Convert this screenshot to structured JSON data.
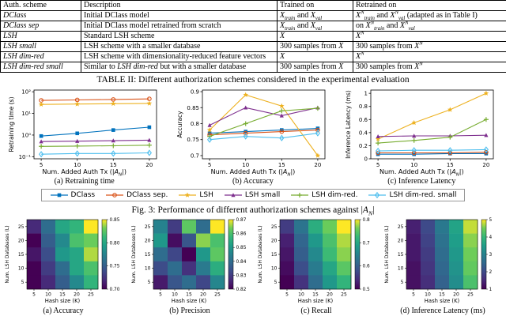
{
  "table": {
    "caption": "TABLE II: Different authorization schemes considered in the experimental evaluation",
    "headers": [
      "Auth. scheme",
      "Description",
      "Trained on",
      "Retrained on"
    ],
    "rows": [
      {
        "cells": [
          "*{DClass}",
          "Initial DClass model",
          "*{X}_{*{train}} and *{X}_{*{val}}",
          "*{X}^{*{N}}_{*{train}} and *{X}^{*{N}}_{*{val}} (adapted as in Table I)"
        ]
      },
      {
        "cells": [
          "*{DClass sep}",
          "Initial DClass model retrained from scratch",
          "*{X}_{*{train}} and *{X}_{*{val}}",
          "on *{X}^{*{N}}_{*{train}} and *{X}^{*{N}}_{*{val}}"
        ]
      },
      {
        "cells": [
          "*{LSH}",
          "Standard LSH scheme",
          "*{X}",
          "*{X}^{*{N}}"
        ]
      },
      {
        "cells": [
          "*{LSH small}",
          "LSH scheme with a smaller database",
          "300 samples from *{X}",
          "300 samples from *{X}^{*{N}}"
        ]
      },
      {
        "cells": [
          "*{LSH dim-red}",
          "LSH scheme with dimensionality-reduced feature vectors",
          "*{X}",
          "*{X}^{*{N}}"
        ]
      },
      {
        "cells": [
          "*{LSH dim-red small}",
          "Similar to *{LSH dim-red} but with a smaller database",
          "300 samples from *{X}",
          "300 samples from *{X}^{*{N}}"
        ]
      }
    ]
  },
  "fig3": {
    "caption": "Fig. 3: Performance of different authorization schemes against |*{A}_{*{N}}|",
    "xlabel": "Num. Added Auth Tx (|*{A}_{*{N}}|)",
    "subcaptions": [
      "(a) Retraining time",
      "(b) Accuracy",
      "(c) Inference Latency"
    ]
  },
  "heatmaps": {
    "subcaptions": [
      "(a) Accuracy",
      "(b) Precision",
      "(c) Recall",
      "(d) Inference Latency (ms)"
    ]
  },
  "legend": {
    "items": [
      {
        "label": "DClass",
        "color": "#0072BD",
        "marker": "sq"
      },
      {
        "label": "DClass sep.",
        "color": "#D95319",
        "marker": "ci"
      },
      {
        "label": "LSH",
        "color": "#EDB120",
        "marker": "st"
      },
      {
        "label": "LSH small",
        "color": "#7E2F8E",
        "marker": "tr"
      },
      {
        "label": "LSH dim-red.",
        "color": "#77AC30",
        "marker": "pl"
      },
      {
        "label": "LSH dim-red. small",
        "color": "#4DBEEE",
        "marker": "di"
      }
    ]
  },
  "chart_data": [
    {
      "type": "line",
      "title": "(a) Retraining time",
      "xlabel": "Num. Added Auth Tx (|A_N|)",
      "ylabel": "Retraining time (s)",
      "x": [
        5,
        10,
        15,
        20
      ],
      "xlim": [
        4,
        21
      ],
      "ylog": true,
      "ylim": [
        0.08,
        120
      ],
      "yticks": [
        0.1,
        1,
        10,
        100
      ],
      "yticklabels": [
        "10⁻¹",
        "10⁰",
        "10¹",
        "10²"
      ],
      "series": [
        {
          "name": "DClass",
          "color": "#0072BD",
          "marker": "sq",
          "values": [
            0.9,
            1.2,
            1.7,
            2.3
          ]
        },
        {
          "name": "DClass sep.",
          "color": "#D95319",
          "marker": "ci",
          "values": [
            40,
            42,
            44,
            47
          ]
        },
        {
          "name": "LSH",
          "color": "#EDB120",
          "marker": "st",
          "values": [
            26,
            27,
            28,
            29
          ]
        },
        {
          "name": "LSH small",
          "color": "#7E2F8E",
          "marker": "tr",
          "values": [
            0.5,
            0.52,
            0.55,
            0.58
          ]
        },
        {
          "name": "LSH dim-red.",
          "color": "#77AC30",
          "marker": "pl",
          "values": [
            0.3,
            0.31,
            0.32,
            0.34
          ]
        },
        {
          "name": "LSH dim-red. small",
          "color": "#4DBEEE",
          "marker": "di",
          "values": [
            0.13,
            0.14,
            0.14,
            0.15
          ]
        }
      ]
    },
    {
      "type": "line",
      "title": "(b) Accuracy",
      "xlabel": "Num. Added Auth Tx (|A_N|)",
      "ylabel": "Accuracy",
      "x": [
        5,
        10,
        15,
        20
      ],
      "xlim": [
        4,
        21
      ],
      "ylog": false,
      "ylim": [
        0.69,
        0.905
      ],
      "yticks": [
        0.7,
        0.75,
        0.8,
        0.85,
        0.9
      ],
      "yticklabels": [
        "0.7",
        "0.75",
        "0.8",
        "0.85",
        "0.9"
      ],
      "series": [
        {
          "name": "DClass",
          "color": "#0072BD",
          "marker": "sq",
          "values": [
            0.77,
            0.775,
            0.78,
            0.785
          ]
        },
        {
          "name": "DClass sep.",
          "color": "#D95319",
          "marker": "ci",
          "values": [
            0.765,
            0.77,
            0.775,
            0.78
          ]
        },
        {
          "name": "LSH",
          "color": "#EDB120",
          "marker": "st",
          "values": [
            0.78,
            0.89,
            0.855,
            0.7
          ]
        },
        {
          "name": "LSH small",
          "color": "#7E2F8E",
          "marker": "tr",
          "values": [
            0.795,
            0.85,
            0.825,
            0.85
          ]
        },
        {
          "name": "LSH dim-red.",
          "color": "#77AC30",
          "marker": "pl",
          "values": [
            0.76,
            0.8,
            0.84,
            0.848
          ]
        },
        {
          "name": "LSH dim-red. small",
          "color": "#4DBEEE",
          "marker": "di",
          "values": [
            0.75,
            0.76,
            0.755,
            0.77
          ]
        }
      ]
    },
    {
      "type": "line",
      "title": "(c) Inference Latency",
      "xlabel": "Num. Added Auth Tx (|A_N|)",
      "ylabel": "Inference Latency (ms)",
      "x": [
        5,
        10,
        15,
        20
      ],
      "xlim": [
        4,
        21
      ],
      "ylog": false,
      "ylim": [
        0,
        1.05
      ],
      "yticks": [
        0,
        0.2,
        0.4,
        0.6,
        0.8,
        1
      ],
      "yticklabels": [
        "0",
        "0.2",
        "0.4",
        "0.6",
        "0.8",
        "1"
      ],
      "series": [
        {
          "name": "DClass",
          "color": "#0072BD",
          "marker": "sq",
          "values": [
            0.07,
            0.07,
            0.08,
            0.08
          ]
        },
        {
          "name": "DClass sep.",
          "color": "#D95319",
          "marker": "ci",
          "values": [
            0.09,
            0.09,
            0.09,
            0.1
          ]
        },
        {
          "name": "LSH",
          "color": "#EDB120",
          "marker": "st",
          "values": [
            0.3,
            0.55,
            0.75,
            1.0
          ]
        },
        {
          "name": "LSH small",
          "color": "#7E2F8E",
          "marker": "tr",
          "values": [
            0.34,
            0.35,
            0.35,
            0.36
          ]
        },
        {
          "name": "LSH dim-red.",
          "color": "#77AC30",
          "marker": "pl",
          "values": [
            0.24,
            0.28,
            0.33,
            0.6
          ]
        },
        {
          "name": "LSH dim-red. small",
          "color": "#4DBEEE",
          "marker": "di",
          "values": [
            0.12,
            0.13,
            0.13,
            0.14
          ]
        }
      ]
    },
    {
      "type": "heatmap",
      "title": "(a) Accuracy",
      "xlabel": "Hash size (K)",
      "ylabel": "Num. LSH Databases (L)",
      "x": [
        5,
        10,
        15,
        20,
        25
      ],
      "y": [
        25,
        20,
        15,
        10,
        5
      ],
      "vmin": 0.7,
      "vmax": 0.85,
      "cbar_ticks": [
        0.7,
        0.75,
        0.8,
        0.85
      ],
      "cbar_tick_labels": [
        "0.70",
        "0.75",
        "0.80",
        "0.85"
      ],
      "grid": [
        [
          0.72,
          0.76,
          0.8,
          0.81,
          0.85
        ],
        [
          0.7,
          0.75,
          0.78,
          0.82,
          0.83
        ],
        [
          0.71,
          0.74,
          0.79,
          0.8,
          0.84
        ],
        [
          0.7,
          0.73,
          0.76,
          0.8,
          0.82
        ],
        [
          0.7,
          0.72,
          0.75,
          0.78,
          0.81
        ]
      ]
    },
    {
      "type": "heatmap",
      "title": "(b) Precision",
      "xlabel": "Hash size (K)",
      "ylabel": "Num. LSH Databases (L)",
      "x": [
        5,
        10,
        15,
        20,
        25
      ],
      "y": [
        25,
        20,
        15,
        10,
        5
      ],
      "vmin": 0.82,
      "vmax": 0.87,
      "cbar_ticks": [
        0.82,
        0.83,
        0.84,
        0.85,
        0.86,
        0.87
      ],
      "cbar_tick_labels": [
        "0.82",
        "0.83",
        "0.84",
        "0.85",
        "0.86",
        "0.87"
      ],
      "grid": [
        [
          0.845,
          0.83,
          0.862,
          0.84,
          0.87
        ],
        [
          0.85,
          0.822,
          0.835,
          0.865,
          0.86
        ],
        [
          0.84,
          0.832,
          0.82,
          0.85,
          0.862
        ],
        [
          0.833,
          0.84,
          0.828,
          0.843,
          0.855
        ],
        [
          0.824,
          0.835,
          0.84,
          0.832,
          0.846
        ]
      ]
    },
    {
      "type": "heatmap",
      "title": "(c) Recall",
      "xlabel": "Hash size (K)",
      "ylabel": "Num. LSH Databases (L)",
      "x": [
        5,
        10,
        15,
        20,
        25
      ],
      "y": [
        25,
        20,
        15,
        10,
        5
      ],
      "vmin": 0.5,
      "vmax": 0.8,
      "cbar_ticks": [
        0.5,
        0.6,
        0.7,
        0.8
      ],
      "cbar_tick_labels": [
        "0.5",
        "0.6",
        "0.7",
        "0.8"
      ],
      "grid": [
        [
          0.56,
          0.63,
          0.71,
          0.76,
          0.8
        ],
        [
          0.53,
          0.61,
          0.68,
          0.74,
          0.78
        ],
        [
          0.52,
          0.6,
          0.66,
          0.73,
          0.77
        ],
        [
          0.51,
          0.58,
          0.64,
          0.7,
          0.75
        ],
        [
          0.5,
          0.55,
          0.62,
          0.68,
          0.72
        ]
      ]
    },
    {
      "type": "heatmap",
      "title": "(d) Inference Latency (ms)",
      "xlabel": "Hash size (K)",
      "ylabel": "Num. LSH Databases (L)",
      "x": [
        5,
        10,
        15,
        20,
        25
      ],
      "y": [
        25,
        20,
        15,
        10,
        5
      ],
      "vmin": 1,
      "vmax": 5,
      "cbar_ticks": [
        1,
        2,
        3,
        4,
        5
      ],
      "cbar_tick_labels": [
        "1",
        "2",
        "3",
        "4",
        "5"
      ],
      "grid": [
        [
          1.4,
          2.0,
          2.8,
          3.6,
          4.8
        ],
        [
          1.3,
          1.9,
          2.7,
          3.5,
          4.6
        ],
        [
          1.3,
          1.8,
          2.6,
          3.4,
          4.5
        ],
        [
          1.2,
          1.7,
          2.5,
          3.3,
          4.4
        ],
        [
          1.2,
          1.6,
          2.4,
          3.2,
          4.2
        ]
      ]
    }
  ]
}
